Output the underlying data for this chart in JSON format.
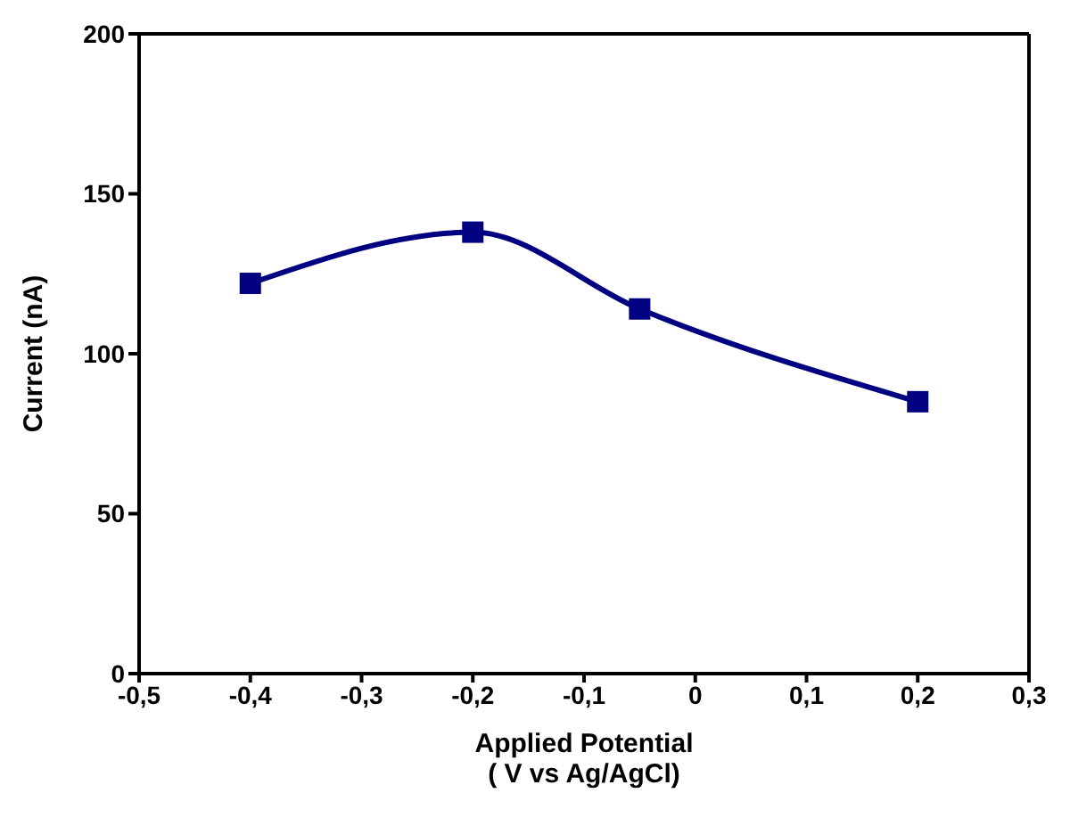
{
  "chart_data": {
    "type": "line",
    "xlabel": "Applied Potential\n( V vs Ag/AgCl)",
    "ylabel": "Current (nA)",
    "x": [
      -0.4,
      -0.2,
      -0.05,
      0.2
    ],
    "series": [
      {
        "color": "#000080",
        "values": [
          122,
          138,
          114,
          85
        ]
      }
    ],
    "xlim": [
      -0.5,
      0.3
    ],
    "xticks": [
      {
        "value": -0.5,
        "label": "-0,5"
      },
      {
        "value": -0.4,
        "label": "-0,4"
      },
      {
        "value": -0.3,
        "label": "-0,3"
      },
      {
        "value": -0.2,
        "label": "-0,2"
      },
      {
        "value": -0.1,
        "label": "-0,1"
      },
      0,
      {
        "value": 0.1,
        "label": "0,1"
      },
      {
        "value": 0.2,
        "label": "0,2"
      },
      {
        "value": 0.3,
        "label": "0,3"
      }
    ],
    "ylim": [
      0,
      200
    ],
    "yticks": [
      0,
      50,
      100,
      150,
      200
    ],
    "marker": "square",
    "line_style": "solid",
    "grid": false,
    "legend": false
  }
}
